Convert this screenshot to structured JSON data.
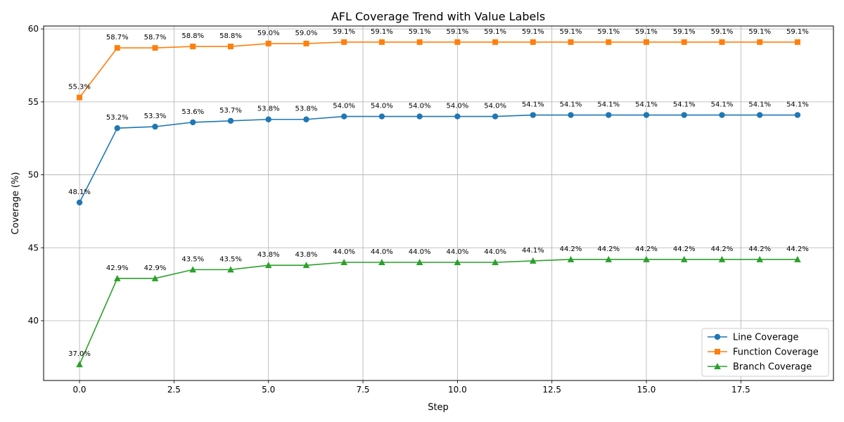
{
  "chart_data": {
    "type": "line",
    "title": "AFL Coverage Trend with Value Labels",
    "xlabel": "Step",
    "ylabel": "Coverage (%)",
    "xlim": [
      -0.95,
      19.95
    ],
    "ylim": [
      35.9,
      60.2
    ],
    "xticks": [
      0.0,
      2.5,
      5.0,
      7.5,
      10.0,
      12.5,
      15.0,
      17.5
    ],
    "xtick_labels": [
      "0.0",
      "2.5",
      "5.0",
      "7.5",
      "10.0",
      "12.5",
      "15.0",
      "17.5"
    ],
    "yticks": [
      40,
      45,
      50,
      55,
      60
    ],
    "ytick_labels": [
      "40",
      "45",
      "50",
      "55",
      "60"
    ],
    "grid": true,
    "legend_position": "lower-right",
    "x": [
      0,
      1,
      2,
      3,
      4,
      5,
      6,
      7,
      8,
      9,
      10,
      11,
      12,
      13,
      14,
      15,
      16,
      17,
      18,
      19
    ],
    "series": [
      {
        "name": "Line Coverage",
        "color": "#1f77b4",
        "marker": "circle",
        "values": [
          48.1,
          53.2,
          53.3,
          53.6,
          53.7,
          53.8,
          53.8,
          54.0,
          54.0,
          54.0,
          54.0,
          54.0,
          54.1,
          54.1,
          54.1,
          54.1,
          54.1,
          54.1,
          54.1,
          54.1
        ],
        "labels": [
          "48.1%",
          "53.2%",
          "53.3%",
          "53.6%",
          "53.7%",
          "53.8%",
          "53.8%",
          "54.0%",
          "54.0%",
          "54.0%",
          "54.0%",
          "54.0%",
          "54.1%",
          "54.1%",
          "54.1%",
          "54.1%",
          "54.1%",
          "54.1%",
          "54.1%",
          "54.1%"
        ]
      },
      {
        "name": "Function Coverage",
        "color": "#ff7f0e",
        "marker": "square",
        "values": [
          55.3,
          58.7,
          58.7,
          58.8,
          58.8,
          59.0,
          59.0,
          59.1,
          59.1,
          59.1,
          59.1,
          59.1,
          59.1,
          59.1,
          59.1,
          59.1,
          59.1,
          59.1,
          59.1,
          59.1
        ],
        "labels": [
          "55.3%",
          "58.7%",
          "58.7%",
          "58.8%",
          "58.8%",
          "59.0%",
          "59.0%",
          "59.1%",
          "59.1%",
          "59.1%",
          "59.1%",
          "59.1%",
          "59.1%",
          "59.1%",
          "59.1%",
          "59.1%",
          "59.1%",
          "59.1%",
          "59.1%",
          "59.1%"
        ]
      },
      {
        "name": "Branch Coverage",
        "color": "#2ca02c",
        "marker": "triangle",
        "values": [
          37.0,
          42.9,
          42.9,
          43.5,
          43.5,
          43.8,
          43.8,
          44.0,
          44.0,
          44.0,
          44.0,
          44.0,
          44.1,
          44.2,
          44.2,
          44.2,
          44.2,
          44.2,
          44.2,
          44.2
        ],
        "labels": [
          "37.0%",
          "42.9%",
          "42.9%",
          "43.5%",
          "43.5%",
          "43.8%",
          "43.8%",
          "44.0%",
          "44.0%",
          "44.0%",
          "44.0%",
          "44.0%",
          "44.1%",
          "44.2%",
          "44.2%",
          "44.2%",
          "44.2%",
          "44.2%",
          "44.2%",
          "44.2%"
        ]
      }
    ]
  }
}
